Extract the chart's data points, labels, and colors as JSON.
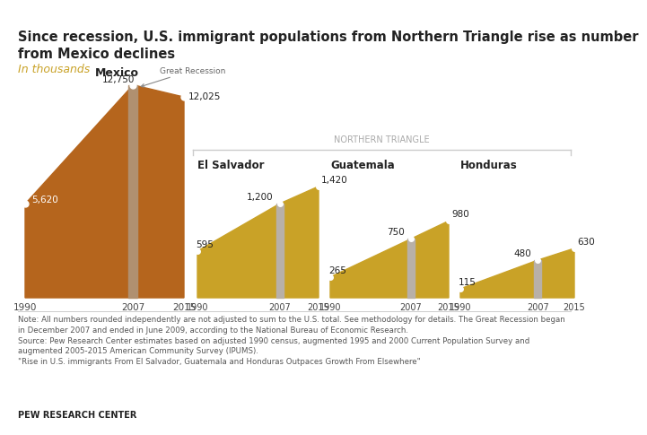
{
  "title": "Since recession, U.S. immigrant populations from Northern Triangle rise as number\nfrom Mexico declines",
  "subtitle": "In thousands",
  "mexico": {
    "years": [
      1990,
      2007,
      2015
    ],
    "values": [
      5620,
      12750,
      12025
    ],
    "color": "#b5651d",
    "recession_bar_color": "#b09070",
    "label": "Mexico"
  },
  "northern_triangle": {
    "label": "NORTHERN TRIANGLE",
    "countries": [
      {
        "name": "El Salvador",
        "years": [
          1990,
          2007,
          2015
        ],
        "values": [
          595,
          1200,
          1420
        ],
        "color": "#c9a227",
        "recession_bar_color": "#b8b0a8"
      },
      {
        "name": "Guatemala",
        "years": [
          1990,
          2007,
          2015
        ],
        "values": [
          265,
          750,
          980
        ],
        "color": "#c9a227",
        "recession_bar_color": "#b8b0a8"
      },
      {
        "name": "Honduras",
        "years": [
          1990,
          2007,
          2015
        ],
        "values": [
          115,
          480,
          630
        ],
        "color": "#c9a227",
        "recession_bar_color": "#b8b0a8"
      }
    ]
  },
  "note_text": "Note: All numbers rounded independently are not adjusted to sum to the U.S. total. See methodology for details. The Great Recession began\nin December 2007 and ended in June 2009, according to the National Bureau of Economic Research.\nSource: Pew Research Center estimates based on adjusted 1990 census, augmented 1995 and 2000 Current Population Survey and\naugmented 2005-2015 American Community Survey (IPUMS).\n\"Rise in U.S. immigrants From El Salvador, Guatemala and Honduras Outpaces Growth From Elsewhere\"",
  "footer": "PEW RESEARCH CENTER",
  "bg_color": "#ffffff",
  "title_color": "#222222",
  "subtitle_color": "#c9a227"
}
